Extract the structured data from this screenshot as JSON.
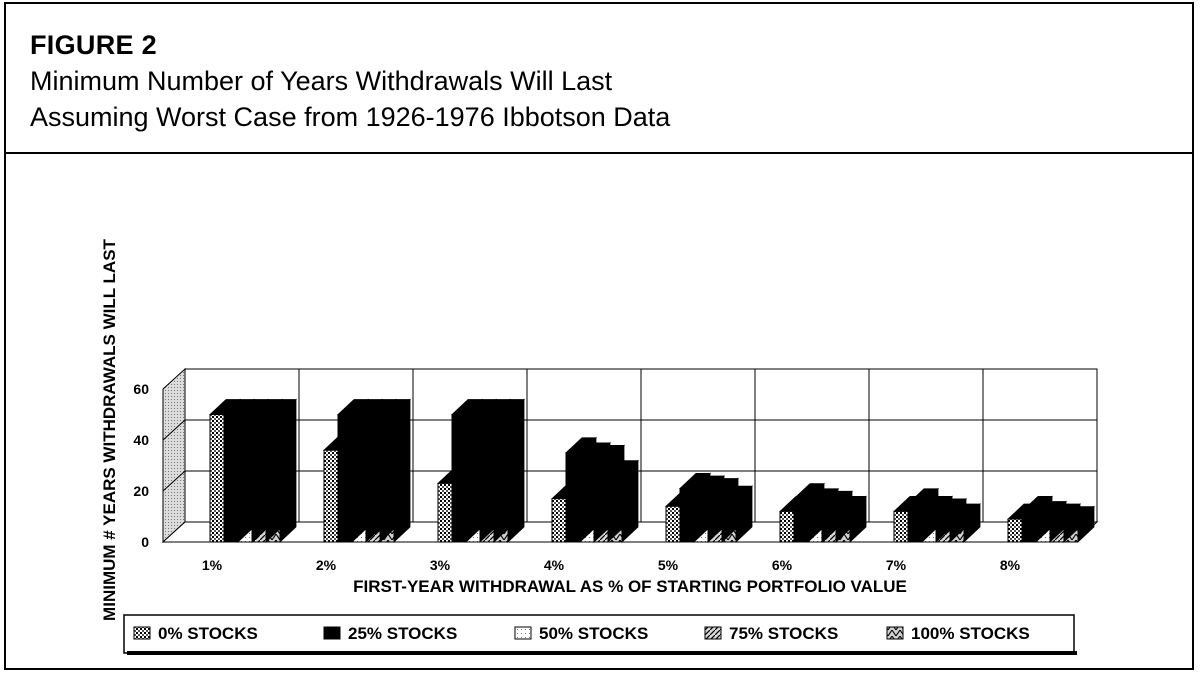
{
  "figure": {
    "label": "FIGURE 2",
    "title_line1": "Minimum Number of Years Withdrawals Will Last",
    "title_line2": "Assuming Worst Case from 1926-1976 Ibbotson Data"
  },
  "chart_data": {
    "type": "bar",
    "style": "3d-clustered",
    "xlabel": "FIRST-YEAR WITHDRAWAL AS % OF STARTING PORTFOLIO VALUE",
    "ylabel": "MINIMUM # YEARS WITHDRAWALS WILL LAST",
    "ylim": [
      0,
      60
    ],
    "yticks": [
      0,
      20,
      40,
      60
    ],
    "grid": true,
    "legend_position": "bottom",
    "categories": [
      "1%",
      "2%",
      "3%",
      "4%",
      "5%",
      "6%",
      "7%",
      "8%"
    ],
    "series": [
      {
        "name": "0% STOCKS",
        "pattern": "grid-pattern",
        "values": [
          50,
          36,
          23,
          17,
          14,
          12,
          12,
          9
        ]
      },
      {
        "name": "25% STOCKS",
        "pattern": "solid-black",
        "values": [
          50,
          50,
          50,
          35,
          21,
          17,
          15,
          12
        ]
      },
      {
        "name": "50% STOCKS",
        "pattern": "fine-dots",
        "values": [
          50,
          50,
          50,
          33,
          20,
          15,
          12,
          10
        ]
      },
      {
        "name": "75% STOCKS",
        "pattern": "diagonal-hatch",
        "values": [
          50,
          50,
          50,
          32,
          19,
          14,
          11,
          9
        ]
      },
      {
        "name": "100% STOCKS",
        "pattern": "herringbone",
        "values": [
          50,
          50,
          50,
          26,
          16,
          12,
          9,
          8
        ]
      }
    ]
  }
}
